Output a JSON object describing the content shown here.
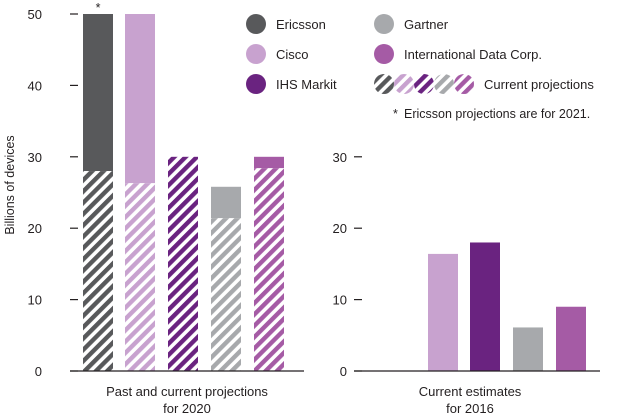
{
  "colors": {
    "ericsson": "#58595b",
    "cisco": "#c8a2cf",
    "ihs_markit": "#6a2380",
    "gartner": "#a7a9ac",
    "idc": "#a55ba5"
  },
  "legend": {
    "ericsson": "Ericsson",
    "gartner": "Gartner",
    "cisco": "Cisco",
    "idc": "International Data Corp.",
    "ihs_markit": "IHS Markit",
    "current": "Current projections"
  },
  "footnote": {
    "marker": "*",
    "text": "Ericsson projections are for 2021."
  },
  "chart_data": [
    {
      "type": "bar",
      "title": "Past and current projections for 2020",
      "title_lines": [
        "Past and current projections",
        "for 2020"
      ],
      "ylabel": "Billions of devices",
      "ylim": [
        0,
        50
      ],
      "yticks": [
        0,
        10,
        20,
        30,
        40,
        50
      ],
      "categories": [
        "Ericsson",
        "Cisco",
        "IHS Markit",
        "Gartner",
        "International Data Corp."
      ],
      "series": [
        {
          "name": "Current projections",
          "values": [
            28,
            26.3,
            30,
            21.4,
            28.4
          ]
        },
        {
          "name": "Past projections",
          "values": [
            50,
            50,
            30,
            25.8,
            30
          ]
        }
      ],
      "annotations": [
        {
          "category": "Ericsson",
          "text": "*"
        }
      ]
    },
    {
      "type": "bar",
      "title": "Current estimates for 2016",
      "title_lines": [
        "Current estimates",
        "for 2016"
      ],
      "ylim": [
        0,
        30
      ],
      "yticks": [
        0,
        10,
        20,
        30
      ],
      "categories": [
        "Ericsson",
        "Cisco",
        "IHS Markit",
        "Gartner",
        "International Data Corp."
      ],
      "values": [
        null,
        16.4,
        18,
        6.1,
        9
      ]
    }
  ]
}
